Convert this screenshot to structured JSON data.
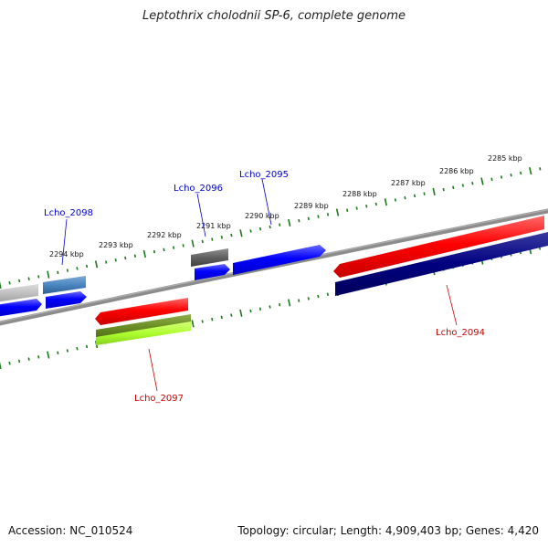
{
  "title": "Leptothrix cholodnii SP-6, complete genome",
  "footer": {
    "accession": "Accession: NC_010524",
    "summary": "Topology: circular; Length: 4,909,403 bp; Genes: 4,420"
  },
  "scale": {
    "tick_labels": [
      {
        "label": "2294 kbp",
        "kbp": 2294
      },
      {
        "label": "2293 kbp",
        "kbp": 2293
      },
      {
        "label": "2292 kbp",
        "kbp": 2292
      },
      {
        "label": "2291 kbp",
        "kbp": 2291
      },
      {
        "label": "2290 kbp",
        "kbp": 2290
      },
      {
        "label": "2289 kbp",
        "kbp": 2289
      },
      {
        "label": "2288 kbp",
        "kbp": 2288
      },
      {
        "label": "2287 kbp",
        "kbp": 2287
      },
      {
        "label": "2286 kbp",
        "kbp": 2286
      },
      {
        "label": "2285 kbp",
        "kbp": 2285
      }
    ]
  },
  "genes": [
    {
      "label": "Lcho_2098",
      "strand": "forward",
      "color": "#0000cc"
    },
    {
      "label": "Lcho_2096",
      "strand": "forward",
      "color": "#0000cc"
    },
    {
      "label": "Lcho_2095",
      "strand": "forward",
      "color": "#0000cc"
    },
    {
      "label": "Lcho_2097",
      "strand": "reverse",
      "color": "#cc0000"
    },
    {
      "label": "Lcho_2094",
      "strand": "reverse",
      "color": "#cc0000"
    }
  ],
  "colors": {
    "backbone": "#8c8c8c",
    "tick": "#1a7a1a",
    "forward_cds": "#0000ff",
    "reverse_cds": "#ff0000",
    "forward_label": "#0000cc",
    "reverse_label": "#cc0000",
    "steel_blue": "#4a86c0",
    "dark_gray": "#606060",
    "light_gray": "#c0c0c0",
    "navy": "#000080",
    "olive": "#6b8e23",
    "lime": "#adff2f"
  }
}
